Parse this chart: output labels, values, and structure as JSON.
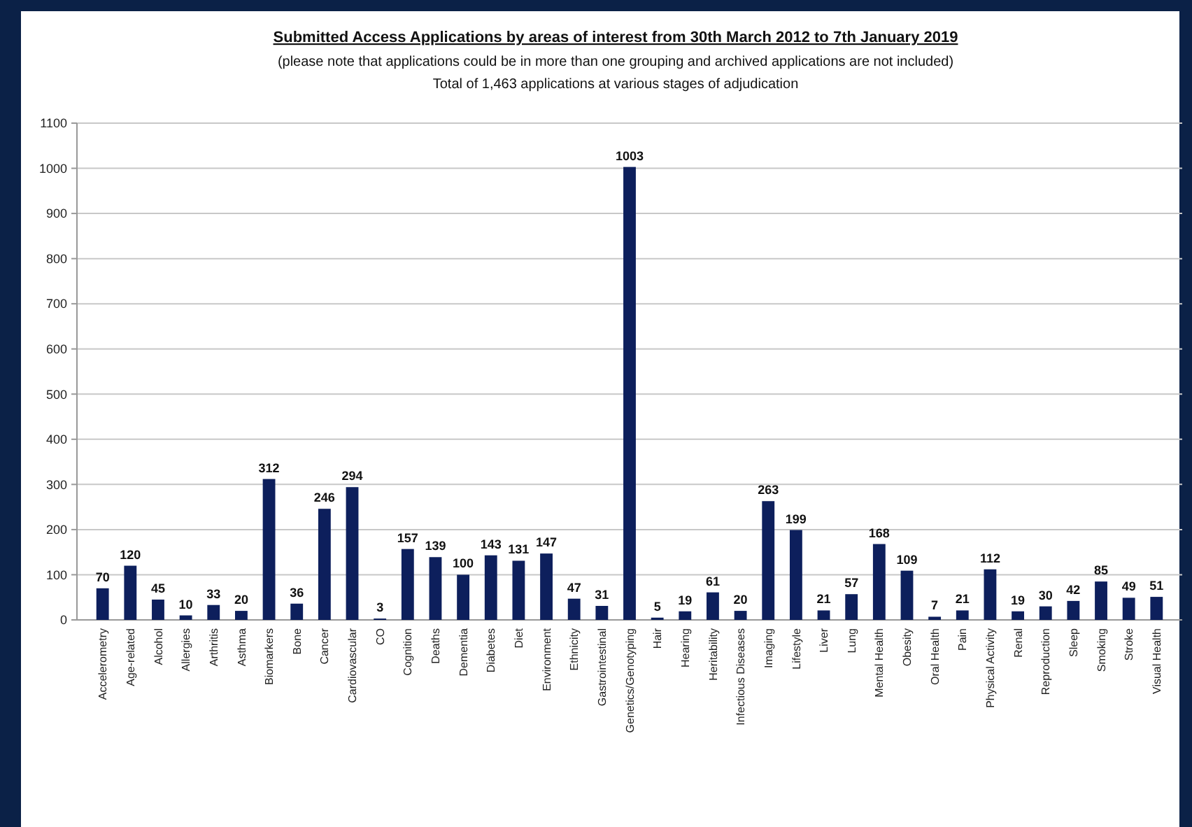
{
  "chart_data": {
    "type": "bar",
    "title": "Submitted Access Applications by areas of interest from 30th March 2012 to 7th January 2019",
    "subtitle": "(please note that applications could be in more than one grouping and archived applications are not included)",
    "annotations": [
      "Total of 1,463 applications at various stages of adjudication"
    ],
    "categories": [
      "Accelerometry",
      "Age-related",
      "Alcohol",
      "Allergies",
      "Arthritis",
      "Asthma",
      "Biomarkers",
      "Bone",
      "Cancer",
      "Cardiovascular",
      "CO",
      "Cognition",
      "Deaths",
      "Dementia",
      "Diabetes",
      "Diet",
      "Environment",
      "Ethnicity",
      "Gastrointestinal",
      "Genetics/Genotyping",
      "Hair",
      "Hearing",
      "Heritability",
      "Infectious Diseases",
      "Imaging",
      "Lifestyle",
      "Liver",
      "Lung",
      "Mental Health",
      "Obesity",
      "Oral Health",
      "Pain",
      "Physical Activity",
      "Renal",
      "Reproduction",
      "Sleep",
      "Smoking",
      "Stroke",
      "Visual Health"
    ],
    "values": [
      70,
      120,
      45,
      10,
      33,
      20,
      312,
      36,
      246,
      294,
      3,
      157,
      139,
      100,
      143,
      131,
      147,
      47,
      31,
      1003,
      5,
      19,
      61,
      20,
      263,
      199,
      21,
      57,
      168,
      109,
      7,
      21,
      112,
      19,
      30,
      42,
      85,
      49,
      51
    ],
    "color": "#0d1f5c",
    "data_labels": true,
    "ylim": [
      0,
      1100
    ],
    "yticks": [
      0,
      100,
      200,
      300,
      400,
      500,
      600,
      700,
      800,
      900,
      1000,
      1100
    ],
    "grid": "y"
  }
}
